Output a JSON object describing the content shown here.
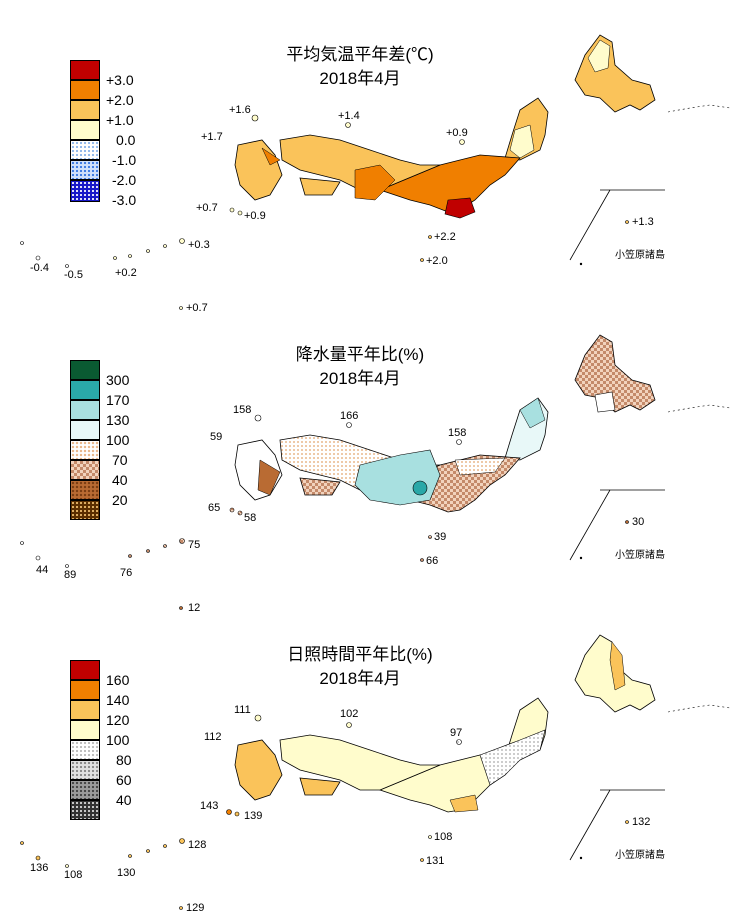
{
  "panels": [
    {
      "title": "平均気温平年差(℃)",
      "subtitle": "2018年4月",
      "legend": [
        "+3.0",
        "+2.0",
        "+1.0",
        "0.0",
        "-1.0",
        "-2.0",
        "-3.0"
      ],
      "legend_colors": [
        "#c00000",
        "#f07f00",
        "#fac35a",
        "#fffccc",
        "#ffffff",
        "#cfe0fa",
        "#1818c8"
      ],
      "values": {
        "v1": "+1.6",
        "v2": "+1.4",
        "v3": "+1.7",
        "v4": "+0.9",
        "v5": "+0.7",
        "v6": "+0.9",
        "v7": "+2.2",
        "v8": "+2.0",
        "v9": "+0.3",
        "v10": "-0.4",
        "v11": "-0.5",
        "v12": "+0.2",
        "v13": "+0.7",
        "v14": "+1.3"
      },
      "inset": "小笠原諸島"
    },
    {
      "title": "降水量平年比(%)",
      "subtitle": "2018年4月",
      "legend": [
        "300",
        "170",
        "130",
        "100",
        "70",
        "40",
        "20"
      ],
      "legend_colors": [
        "#0a5a32",
        "#2aa8a8",
        "#a8e0e0",
        "#e8f8f8",
        "#ffffff",
        "#f2d3bd",
        "#b96b33",
        "#5a2e00"
      ],
      "values": {
        "v1": "158",
        "v2": "166",
        "v3": "59",
        "v4": "158",
        "v5": "65",
        "v6": "58",
        "v7": "39",
        "v8": "66",
        "v9": "75",
        "v10": "44",
        "v11": "89",
        "v12": "76",
        "v13": "12",
        "v14": "30"
      },
      "inset": "小笠原諸島"
    },
    {
      "title": "日照時間平年比(%)",
      "subtitle": "2018年4月",
      "legend": [
        "160",
        "140",
        "120",
        "100",
        "80",
        "60",
        "40"
      ],
      "legend_colors": [
        "#c00000",
        "#f07f00",
        "#fac35a",
        "#fffccc",
        "#ffffff",
        "#e0e0e0",
        "#9a9a9a",
        "#333333"
      ],
      "values": {
        "v1": "111",
        "v2": "102",
        "v3": "112",
        "v4": "97",
        "v5": "143",
        "v6": "139",
        "v7": "108",
        "v8": "131",
        "v9": "128",
        "v10": "136",
        "v11": "108",
        "v12": "130",
        "v13": "129",
        "v14": "132"
      },
      "inset": "小笠原諸島"
    }
  ]
}
